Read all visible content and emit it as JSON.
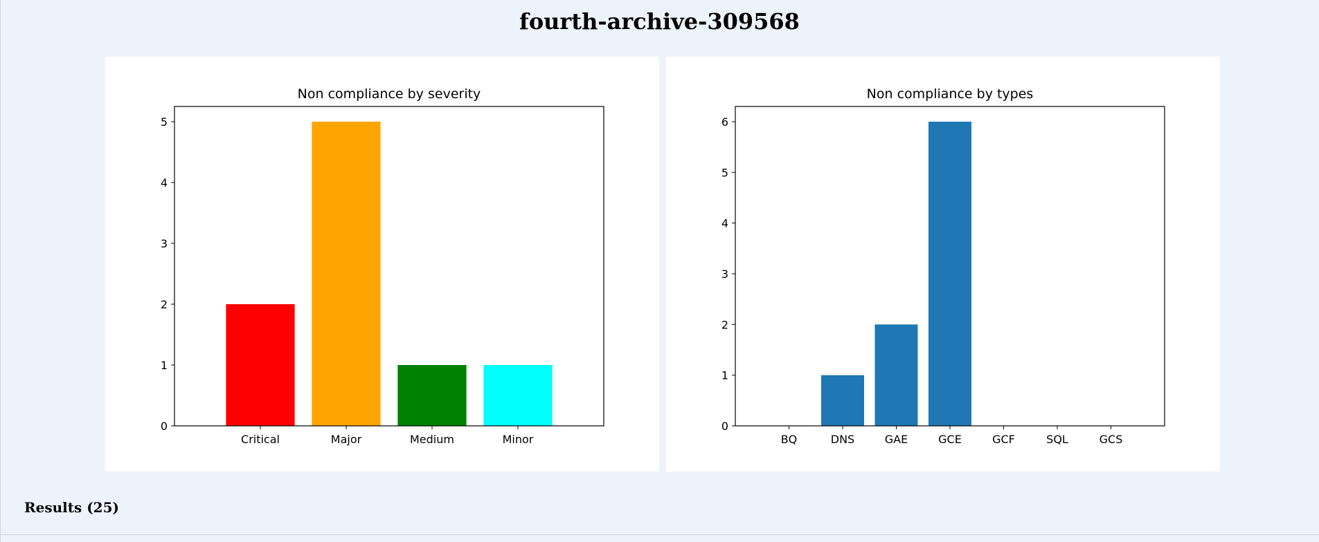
{
  "page": {
    "title": "fourth-archive-309568",
    "results_label": "Results (25)"
  },
  "chart_data": [
    {
      "type": "bar",
      "title": "Non compliance by severity",
      "xlabel": "",
      "ylabel": "",
      "categories": [
        "Critical",
        "Major",
        "Medium",
        "Minor"
      ],
      "values": [
        2,
        5,
        1,
        1
      ],
      "colors": [
        "#ff0000",
        "#ffa500",
        "#008000",
        "#00ffff"
      ],
      "ylim": [
        0,
        5.25
      ],
      "yticks": [
        0,
        1,
        2,
        3,
        4,
        5
      ],
      "grid": false,
      "legend": "none"
    },
    {
      "type": "bar",
      "title": "Non compliance by types",
      "xlabel": "",
      "ylabel": "",
      "categories": [
        "BQ",
        "DNS",
        "GAE",
        "GCE",
        "GCF",
        "SQL",
        "GCS"
      ],
      "values": [
        0,
        1,
        2,
        6,
        0,
        0,
        0
      ],
      "colors": [
        "#1f77b4"
      ],
      "ylim": [
        0,
        6.3
      ],
      "yticks": [
        0,
        1,
        2,
        3,
        4,
        5,
        6
      ],
      "grid": false,
      "legend": "none"
    }
  ]
}
